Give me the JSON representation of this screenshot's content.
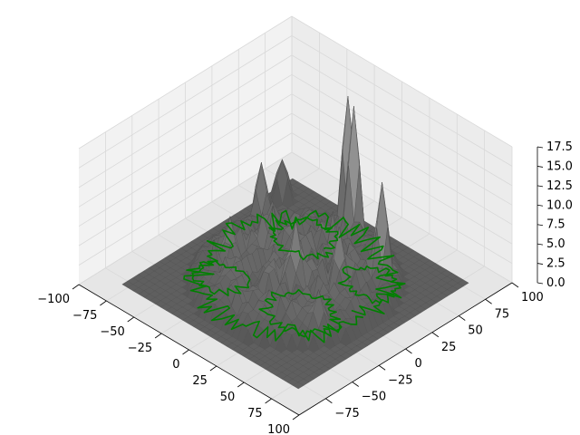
{
  "chart_data": {
    "type": "surface3d",
    "title": "",
    "xlabel": "",
    "ylabel": "",
    "zlabel": "",
    "xlim": [
      -100,
      100
    ],
    "ylim": [
      -100,
      100
    ],
    "zlim": [
      0,
      17.5
    ],
    "x_ticks": [
      -100,
      -75,
      -50,
      -25,
      0,
      25,
      50,
      75,
      100
    ],
    "x_tick_labels": [
      "−100",
      "−75",
      "−50",
      "−25",
      "0",
      "25",
      "50",
      "75",
      "100"
    ],
    "y_ticks": [
      -75,
      -50,
      -25,
      0,
      25,
      50,
      75,
      100
    ],
    "y_tick_labels": [
      "−75",
      "−50",
      "−25",
      "0",
      "25",
      "50",
      "75",
      "100"
    ],
    "z_ticks": [
      0,
      2.5,
      5,
      7.5,
      10,
      12.5,
      15,
      17.5
    ],
    "z_tick_labels": [
      "0.0",
      "2.5",
      "5.0",
      "7.5",
      "10.0",
      "12.5",
      "15.0",
      "17.5"
    ],
    "surface_color": "#6e6e6e",
    "contour_color": "#008000",
    "pane_color": "#f2f2f2",
    "grid": true,
    "grid_color": "#d9d9d9",
    "surface_extent": {
      "x": [
        -80,
        80
      ],
      "y": [
        -80,
        80
      ]
    },
    "contour_level_z": 0
  }
}
